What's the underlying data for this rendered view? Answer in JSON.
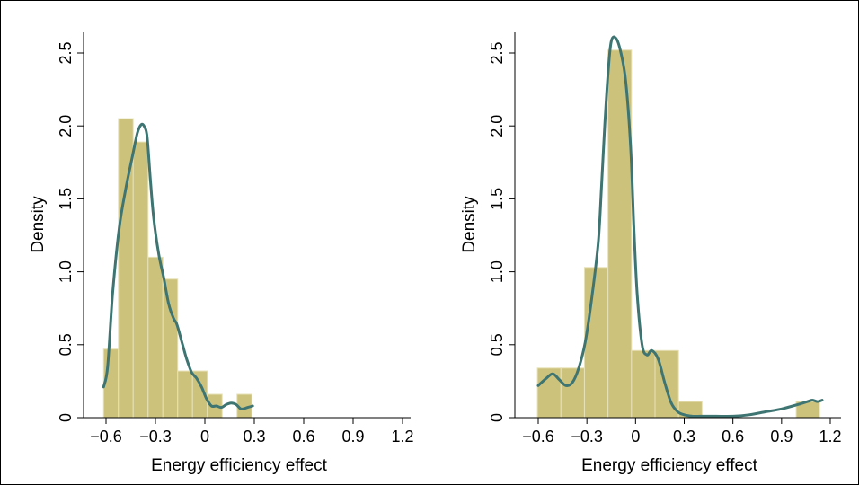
{
  "colors": {
    "bar_fill": "#cdc27c",
    "bar_edge": "#e7e1b8",
    "kde_line": "#3e7572",
    "frame": "#000000"
  },
  "chart_data": [
    {
      "type": "bar",
      "subtype": "histogram-with-kde",
      "xlabel": "Energy efficiency effect",
      "ylabel": "Density",
      "xlim": [
        -0.6,
        1.2
      ],
      "ylim": [
        0,
        2.5
      ],
      "x_ticks": [
        "−0.6",
        "−0.3",
        "0",
        "0.3",
        "0.6",
        "0.9",
        "1.2"
      ],
      "y_ticks": [
        "0",
        "0.5",
        "1.0",
        "1.5",
        "2.0",
        "2.5"
      ],
      "x_tick_values": [
        -0.6,
        -0.3,
        0,
        0.3,
        0.6,
        0.9,
        1.2
      ],
      "y_tick_values": [
        0,
        0.5,
        1.0,
        1.5,
        2.0,
        2.5
      ],
      "grid": false,
      "bins": [
        {
          "x0": -0.615,
          "x1": -0.525,
          "density": 0.47
        },
        {
          "x0": -0.525,
          "x1": -0.435,
          "density": 2.05
        },
        {
          "x0": -0.435,
          "x1": -0.345,
          "density": 1.89
        },
        {
          "x0": -0.345,
          "x1": -0.255,
          "density": 1.1
        },
        {
          "x0": -0.255,
          "x1": -0.165,
          "density": 0.95
        },
        {
          "x0": -0.165,
          "x1": -0.075,
          "density": 0.32
        },
        {
          "x0": -0.075,
          "x1": 0.015,
          "density": 0.32
        },
        {
          "x0": 0.015,
          "x1": 0.105,
          "density": 0.16
        },
        {
          "x0": 0.105,
          "x1": 0.195,
          "density": 0.0
        },
        {
          "x0": 0.195,
          "x1": 0.285,
          "density": 0.16
        }
      ],
      "kde": {
        "x": [
          -0.615,
          -0.59,
          -0.56,
          -0.52,
          -0.48,
          -0.44,
          -0.41,
          -0.385,
          -0.365,
          -0.35,
          -0.33,
          -0.31,
          -0.28,
          -0.25,
          -0.22,
          -0.19,
          -0.17,
          -0.14,
          -0.11,
          -0.08,
          -0.05,
          -0.02,
          0.01,
          0.04,
          0.07,
          0.1,
          0.13,
          0.16,
          0.19,
          0.22,
          0.26,
          0.29
        ],
        "y": [
          0.21,
          0.35,
          0.85,
          1.3,
          1.57,
          1.79,
          1.95,
          2.01,
          1.99,
          1.92,
          1.62,
          1.36,
          1.12,
          0.96,
          0.78,
          0.68,
          0.64,
          0.52,
          0.4,
          0.31,
          0.27,
          0.21,
          0.13,
          0.08,
          0.08,
          0.07,
          0.09,
          0.1,
          0.09,
          0.06,
          0.07,
          0.08
        ]
      }
    },
    {
      "type": "bar",
      "subtype": "histogram-with-kde",
      "xlabel": "Energy efficiency effect",
      "ylabel": "Density",
      "xlim": [
        -0.6,
        1.2
      ],
      "ylim": [
        0,
        2.5
      ],
      "x_ticks": [
        "−0.6",
        "−0.3",
        "0",
        "0.3",
        "0.6",
        "0.9",
        "1.2"
      ],
      "y_ticks": [
        "0",
        "0.5",
        "1.0",
        "1.5",
        "2.0",
        "2.5"
      ],
      "x_tick_values": [
        -0.6,
        -0.3,
        0,
        0.3,
        0.6,
        0.9,
        1.2
      ],
      "y_tick_values": [
        0,
        0.5,
        1.0,
        1.5,
        2.0,
        2.5
      ],
      "grid": false,
      "bins": [
        {
          "x0": -0.605,
          "x1": -0.46,
          "density": 0.34
        },
        {
          "x0": -0.46,
          "x1": -0.315,
          "density": 0.34
        },
        {
          "x0": -0.315,
          "x1": -0.17,
          "density": 1.03
        },
        {
          "x0": -0.17,
          "x1": -0.025,
          "density": 2.52
        },
        {
          "x0": -0.025,
          "x1": 0.12,
          "density": 0.46
        },
        {
          "x0": 0.12,
          "x1": 0.265,
          "density": 0.46
        },
        {
          "x0": 0.265,
          "x1": 0.41,
          "density": 0.11
        },
        {
          "x0": 0.41,
          "x1": 0.555,
          "density": 0.0
        },
        {
          "x0": 0.555,
          "x1": 0.7,
          "density": 0.0
        },
        {
          "x0": 0.7,
          "x1": 0.845,
          "density": 0.0
        },
        {
          "x0": 0.845,
          "x1": 0.99,
          "density": 0.0
        },
        {
          "x0": 0.99,
          "x1": 1.135,
          "density": 0.11
        }
      ],
      "kde": {
        "x": [
          -0.6,
          -0.55,
          -0.51,
          -0.47,
          -0.43,
          -0.39,
          -0.35,
          -0.31,
          -0.27,
          -0.23,
          -0.21,
          -0.19,
          -0.17,
          -0.15,
          -0.12,
          -0.09,
          -0.06,
          -0.03,
          -0.01,
          0.01,
          0.04,
          0.07,
          0.1,
          0.14,
          0.18,
          0.22,
          0.26,
          0.3,
          0.35,
          0.4,
          0.45,
          0.5,
          0.6,
          0.7,
          0.8,
          0.9,
          1.0,
          1.03,
          1.06,
          1.09,
          1.12,
          1.15
        ],
        "y": [
          0.22,
          0.27,
          0.3,
          0.26,
          0.22,
          0.24,
          0.34,
          0.52,
          0.82,
          1.2,
          1.58,
          2.0,
          2.35,
          2.58,
          2.6,
          2.5,
          2.3,
          1.85,
          1.3,
          0.85,
          0.5,
          0.43,
          0.46,
          0.4,
          0.24,
          0.1,
          0.04,
          0.02,
          0.01,
          0.01,
          0.01,
          0.01,
          0.01,
          0.02,
          0.04,
          0.06,
          0.09,
          0.1,
          0.11,
          0.12,
          0.11,
          0.12
        ]
      }
    }
  ]
}
